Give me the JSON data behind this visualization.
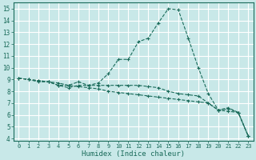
{
  "xlabel": "Humidex (Indice chaleur)",
  "ylabel": "",
  "xlim": [
    -0.5,
    23.5
  ],
  "ylim": [
    3.8,
    15.5
  ],
  "yticks": [
    4,
    5,
    6,
    7,
    8,
    9,
    10,
    11,
    12,
    13,
    14,
    15
  ],
  "xticks": [
    0,
    1,
    2,
    3,
    4,
    5,
    6,
    7,
    8,
    9,
    10,
    11,
    12,
    13,
    14,
    15,
    16,
    17,
    18,
    19,
    20,
    21,
    22,
    23
  ],
  "bg_color": "#c8e8e8",
  "grid_color": "#ffffff",
  "line_color": "#1a6b5a",
  "line2_x": [
    0,
    1,
    2,
    3,
    4,
    5,
    6,
    7,
    8,
    9,
    10,
    11,
    12,
    13,
    14,
    15,
    16,
    17,
    18,
    19,
    20,
    21,
    22,
    23
  ],
  "line2_y": [
    9.1,
    9.0,
    8.9,
    8.8,
    8.5,
    8.3,
    8.5,
    8.5,
    8.7,
    9.5,
    10.7,
    10.7,
    12.2,
    12.5,
    13.8,
    15.0,
    14.9,
    12.5,
    10.0,
    7.8,
    6.4,
    6.6,
    6.2,
    4.2
  ],
  "line1_x": [
    0,
    1,
    2,
    3,
    4,
    5,
    6,
    7,
    8,
    9,
    10,
    11,
    12,
    13,
    14,
    15,
    16,
    17,
    18,
    19,
    20,
    21,
    22,
    23
  ],
  "line1_y": [
    9.1,
    9.0,
    8.9,
    8.8,
    8.7,
    8.5,
    8.4,
    8.3,
    8.2,
    8.0,
    7.9,
    7.8,
    7.7,
    7.6,
    7.5,
    7.4,
    7.3,
    7.2,
    7.1,
    7.0,
    6.4,
    6.3,
    6.2,
    4.2
  ],
  "line3_x": [
    0,
    1,
    2,
    3,
    4,
    5,
    6,
    7,
    8,
    9,
    10,
    11,
    12,
    13,
    14,
    15,
    16,
    17,
    18,
    19,
    20,
    21,
    22,
    23
  ],
  "line3_y": [
    9.1,
    9.0,
    8.8,
    8.8,
    8.5,
    8.5,
    8.8,
    8.5,
    8.5,
    8.5,
    8.5,
    8.5,
    8.5,
    8.4,
    8.3,
    8.0,
    7.8,
    7.7,
    7.6,
    7.0,
    6.4,
    6.5,
    6.2,
    4.2
  ]
}
